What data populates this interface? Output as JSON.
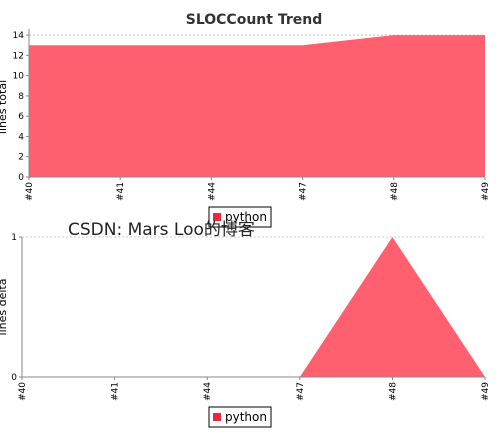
{
  "chart_data": [
    {
      "type": "area",
      "title": "SLOCCount Trend",
      "ylabel": "lines total",
      "categories": [
        "#40",
        "#41",
        "#44",
        "#47",
        "#48",
        "#49"
      ],
      "series": [
        {
          "name": "python",
          "values": [
            13,
            13,
            13,
            13,
            14,
            14
          ]
        }
      ],
      "ylim": [
        0,
        14.6
      ],
      "yticks": [
        0,
        2,
        4,
        6,
        8,
        10,
        12,
        14
      ],
      "grid": true,
      "legend": "bottom-center",
      "colors": {
        "fill": "#ff6070",
        "legend_swatch": "#e8283c"
      }
    },
    {
      "type": "area",
      "title": "",
      "ylabel": "lines delta",
      "categories": [
        "#40",
        "#41",
        "#44",
        "#47",
        "#48",
        "#49"
      ],
      "series": [
        {
          "name": "python",
          "values": [
            0,
            0,
            0,
            0,
            1,
            0
          ]
        }
      ],
      "ylim": [
        0,
        1
      ],
      "yticks": [
        0,
        1
      ],
      "grid": true,
      "legend": "bottom-center",
      "colors": {
        "fill": "#ff6070",
        "legend_swatch": "#e8283c"
      }
    }
  ],
  "watermark": "CSDN: Mars Loo的博客"
}
